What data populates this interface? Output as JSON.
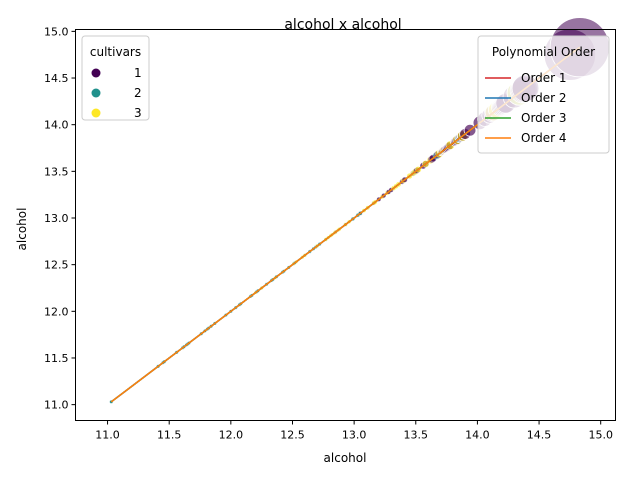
{
  "chart_data": {
    "type": "scatter",
    "title": "alcohol x alcohol",
    "xlabel": "alcohol",
    "ylabel": "alcohol",
    "xlim": [
      10.74,
      15.12
    ],
    "ylim": [
      10.83,
      15.02
    ],
    "xticks": [
      "11.0",
      "11.5",
      "12.0",
      "12.5",
      "13.0",
      "13.5",
      "14.0",
      "14.5",
      "15.0"
    ],
    "xtick_values": [
      11.0,
      11.5,
      12.0,
      12.5,
      13.0,
      13.5,
      14.0,
      14.5,
      15.0
    ],
    "yticks": [
      "11.0",
      "11.5",
      "12.0",
      "12.5",
      "13.0",
      "13.5",
      "14.0",
      "14.5",
      "15.0"
    ],
    "ytick_values": [
      11.0,
      11.5,
      12.0,
      12.5,
      13.0,
      13.5,
      14.0,
      14.5,
      15.0
    ],
    "grid": false,
    "cultivar_legend": {
      "title": "cultivars",
      "placement": "top-left",
      "entries": [
        {
          "label": "1",
          "color": "#440154"
        },
        {
          "label": "2",
          "color": "#21918c"
        },
        {
          "label": "3",
          "color": "#fde725"
        }
      ]
    },
    "fit_legend": {
      "title": "Polynomial Order",
      "placement": "top-right",
      "entries": [
        {
          "label": "Order 1",
          "color": "#d62728"
        },
        {
          "label": "Order 2",
          "color": "#1f77b4"
        },
        {
          "label": "Order 3",
          "color": "#2ca02c"
        },
        {
          "label": "Order 4",
          "color": "#ff7f0e"
        }
      ]
    },
    "series": [
      {
        "name": "1",
        "color": "#440154",
        "x": [
          12.85,
          12.93,
          13.05,
          13.16,
          13.2,
          13.24,
          13.28,
          13.3,
          13.39,
          13.41,
          13.48,
          13.5,
          13.51,
          13.56,
          13.58,
          13.63,
          13.64,
          13.68,
          13.71,
          13.72,
          13.73,
          13.74,
          13.75,
          13.76,
          13.77,
          13.82,
          13.83,
          13.86,
          13.87,
          13.88,
          13.9,
          13.94,
          14.02,
          14.06,
          14.1,
          14.12,
          14.19,
          14.2,
          14.21,
          14.22,
          14.23,
          14.3,
          14.37,
          14.38,
          14.39,
          14.75,
          14.83
        ]
      },
      {
        "name": "2",
        "color": "#21918c",
        "x": [
          11.03,
          11.41,
          11.45,
          11.46,
          11.56,
          11.61,
          11.62,
          11.64,
          11.65,
          11.66,
          11.76,
          11.79,
          11.81,
          11.82,
          11.84,
          11.87,
          11.96,
          12.0,
          12.04,
          12.07,
          12.08,
          12.16,
          12.17,
          12.21,
          12.22,
          12.25,
          12.29,
          12.33,
          12.34,
          12.37,
          12.42,
          12.43,
          12.47,
          12.51,
          12.52,
          12.6,
          12.64,
          12.67,
          12.69,
          12.7,
          12.72,
          12.77,
          12.99,
          13.03,
          13.05,
          13.49,
          13.67,
          13.86,
          14.34
        ]
      },
      {
        "name": "3",
        "color": "#fde725",
        "x": [
          12.2,
          12.25,
          12.36,
          12.51,
          12.53,
          12.58,
          12.6,
          12.7,
          12.77,
          12.79,
          12.81,
          12.82,
          12.84,
          12.85,
          12.87,
          12.88,
          12.93,
          12.96,
          13.08,
          13.11,
          13.16,
          13.17,
          13.23,
          13.27,
          13.32,
          13.34,
          13.36,
          13.4,
          13.45,
          13.48,
          13.49,
          13.5,
          13.52,
          13.58,
          13.62,
          13.69,
          13.71,
          13.73,
          13.78,
          13.84,
          13.88,
          14.13,
          14.16,
          14.34
        ]
      }
    ],
    "fits": [
      {
        "name": "Order 1",
        "color": "#d62728",
        "x": [
          11.03,
          14.83
        ]
      },
      {
        "name": "Order 2",
        "color": "#1f77b4",
        "x": [
          11.03,
          14.83
        ]
      },
      {
        "name": "Order 3",
        "color": "#2ca02c",
        "x": [
          11.03,
          14.83
        ]
      },
      {
        "name": "Order 4",
        "color": "#ff7f0e",
        "x": [
          11.03,
          14.83
        ]
      }
    ]
  }
}
